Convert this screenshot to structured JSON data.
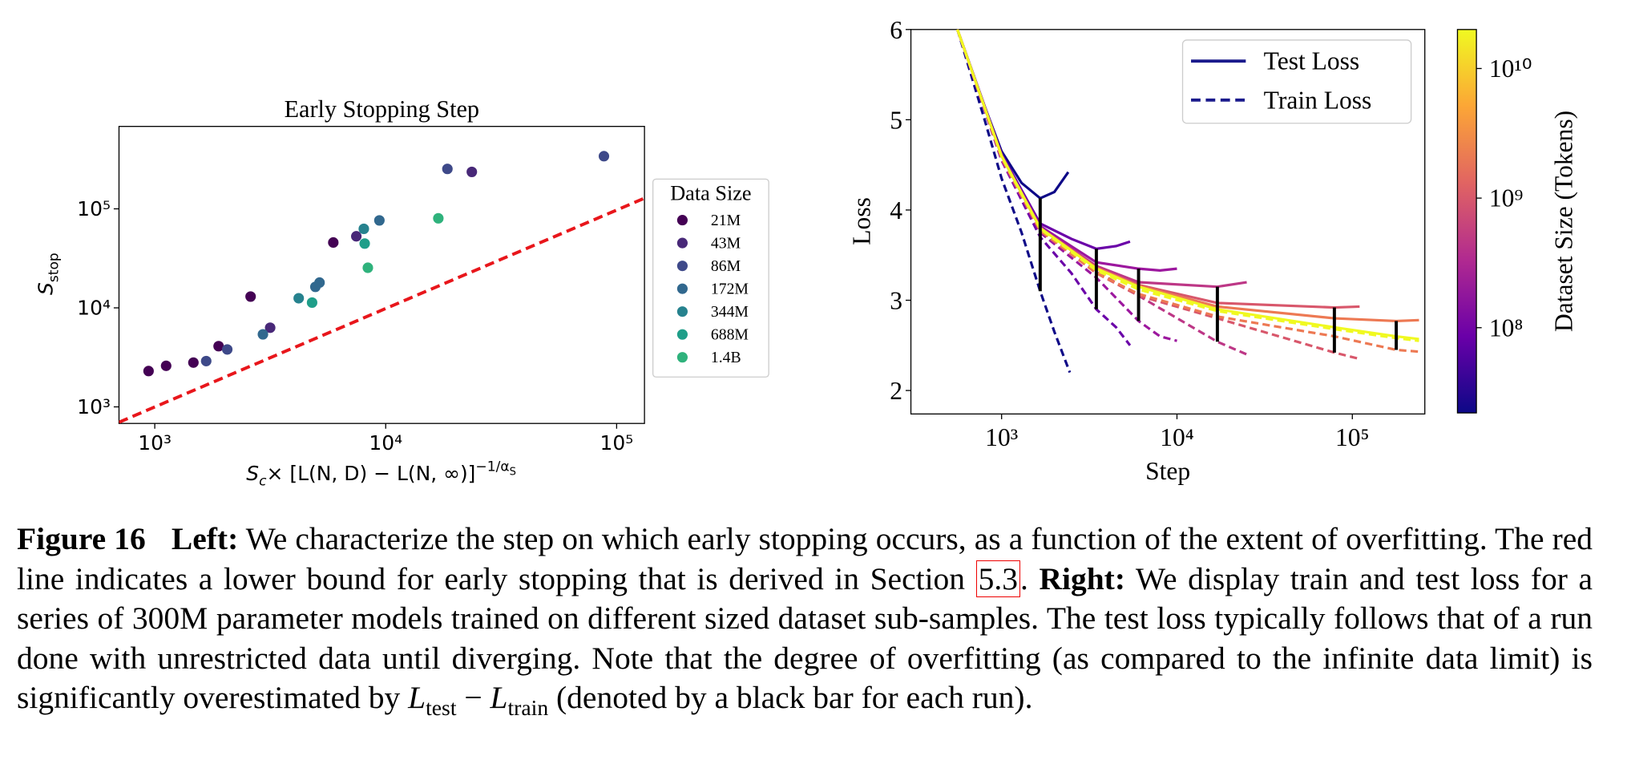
{
  "chart_data": [
    {
      "type": "scatter",
      "title": "Early Stopping Step",
      "xlabel": [
        "S",
        "c",
        "× [L(N, D) − L(N, ∞)]",
        "−1/α",
        "S"
      ],
      "ylabel": [
        "S",
        "stop"
      ],
      "xscale": "log",
      "yscale": "log",
      "xlim": [
        700,
        132000
      ],
      "ylim": [
        680,
        680000
      ],
      "xticks": [
        {
          "value": 1000,
          "label": "10³"
        },
        {
          "value": 10000,
          "label": "10⁴"
        },
        {
          "value": 100000,
          "label": "10⁵"
        }
      ],
      "yticks": [
        {
          "value": 1000,
          "label": "10³"
        },
        {
          "value": 10000,
          "label": "10⁴"
        },
        {
          "value": 100000,
          "label": "10⁵"
        }
      ],
      "legend_title": "Data Size",
      "legend": "outside right",
      "series": [
        {
          "name": "21M",
          "color": "#440154",
          "x": [
            940,
            1120,
            1470,
            1890,
            2600,
            5930
          ],
          "values": [
            2300,
            2600,
            2800,
            4100,
            13000,
            45700
          ]
        },
        {
          "name": "43M",
          "color": "#482878",
          "x": [
            3160,
            7460,
            23600
          ],
          "values": [
            6300,
            52800,
            236000
          ]
        },
        {
          "name": "86M",
          "color": "#3e4989",
          "x": [
            1670,
            2060,
            18500,
            88100
          ],
          "values": [
            2900,
            3800,
            253000,
            340000
          ]
        },
        {
          "name": "172M",
          "color": "#31688e",
          "x": [
            2940,
            4960,
            5170,
            9390
          ],
          "values": [
            5400,
            16300,
            18000,
            76400
          ]
        },
        {
          "name": "344M",
          "color": "#26828e",
          "x": [
            4200,
            8040
          ],
          "values": [
            12500,
            62800
          ]
        },
        {
          "name": "688M",
          "color": "#1f9e89",
          "x": [
            4800,
            8110
          ],
          "values": [
            11300,
            44600
          ]
        },
        {
          "name": "1.4B",
          "color": "#2fb27c",
          "x": [
            8370,
            16900
          ],
          "values": [
            25400,
            80200
          ]
        }
      ],
      "lines": [
        {
          "color": "#e8161b",
          "dash": true,
          "x": [
            700,
            132000
          ],
          "values": [
            700,
            128000
          ]
        }
      ]
    },
    {
      "type": "line",
      "xlabel": "Step",
      "ylabel": "Loss",
      "xscale": "log",
      "xlim": [
        304,
        259000
      ],
      "ylim": [
        1.74,
        6
      ],
      "xticks": [
        {
          "value": 1000,
          "label": "10³"
        },
        {
          "value": 10000,
          "label": "10⁴"
        },
        {
          "value": 100000,
          "label": "10⁵"
        }
      ],
      "yticks": [
        2,
        3,
        4,
        5,
        6
      ],
      "legend": "upper right",
      "legend_entries": [
        {
          "label": "Test Loss",
          "color": "#1a1a8c",
          "dash": false
        },
        {
          "label": "Train Loss",
          "color": "#1a1a8c",
          "dash": true
        }
      ],
      "series": [
        {
          "color": "#0d0887",
          "dash": false,
          "x": [
            560,
            800,
            1000,
            1300,
            1660,
            2000,
            2400
          ],
          "values": [
            6,
            5.15,
            4.65,
            4.3,
            4.13,
            4.2,
            4.42
          ]
        },
        {
          "color": "#0d0887",
          "dash": true,
          "x": [
            560,
            800,
            1000,
            1300,
            1660,
            2000,
            2450
          ],
          "values": [
            6,
            5.0,
            4.35,
            3.75,
            3.1,
            2.65,
            2.2
          ]
        },
        {
          "color": "#6a00a8",
          "dash": false,
          "x": [
            560,
            1000,
            1660,
            2500,
            3470,
            4500,
            5400
          ],
          "values": [
            6,
            4.62,
            3.85,
            3.68,
            3.57,
            3.6,
            3.65
          ]
        },
        {
          "color": "#6a00a8",
          "dash": true,
          "x": [
            560,
            1000,
            1660,
            2500,
            3470,
            4500,
            5400
          ],
          "values": [
            6,
            4.55,
            3.7,
            3.3,
            2.9,
            2.7,
            2.5
          ]
        },
        {
          "color": "#9c179e",
          "dash": false,
          "x": [
            560,
            1000,
            1660,
            3470,
            6040,
            8000,
            10000
          ],
          "values": [
            6,
            4.6,
            3.82,
            3.42,
            3.35,
            3.33,
            3.35
          ]
        },
        {
          "color": "#9c179e",
          "dash": true,
          "x": [
            560,
            1000,
            1660,
            3470,
            6040,
            8000,
            10000
          ],
          "values": [
            6,
            4.55,
            3.75,
            3.25,
            2.77,
            2.6,
            2.55
          ]
        },
        {
          "color": "#bd3786",
          "dash": false,
          "x": [
            560,
            1000,
            1660,
            3470,
            6040,
            17000,
            25000
          ],
          "values": [
            6,
            4.6,
            3.8,
            3.38,
            3.2,
            3.15,
            3.2
          ]
        },
        {
          "color": "#bd3786",
          "dash": true,
          "x": [
            560,
            1000,
            1660,
            3470,
            6040,
            17000,
            25000
          ],
          "values": [
            6,
            4.56,
            3.77,
            3.32,
            3.05,
            2.54,
            2.4
          ]
        },
        {
          "color": "#d8576b",
          "dash": false,
          "x": [
            560,
            1000,
            1660,
            3470,
            6040,
            17000,
            79000,
            110000
          ],
          "values": [
            6,
            4.6,
            3.8,
            3.36,
            3.17,
            2.97,
            2.92,
            2.93
          ]
        },
        {
          "color": "#d8576b",
          "dash": true,
          "x": [
            560,
            1000,
            1660,
            3470,
            6040,
            17000,
            79000,
            110000
          ],
          "values": [
            6,
            4.58,
            3.78,
            3.3,
            3.05,
            2.8,
            2.42,
            2.35
          ]
        },
        {
          "color": "#ed7953",
          "dash": false,
          "x": [
            560,
            1000,
            1660,
            3470,
            6040,
            17000,
            79000,
            178000,
            240000
          ],
          "values": [
            6,
            4.6,
            3.8,
            3.36,
            3.16,
            2.93,
            2.8,
            2.77,
            2.78
          ]
        },
        {
          "color": "#ed7953",
          "dash": true,
          "x": [
            560,
            1000,
            1660,
            3470,
            6040,
            17000,
            79000,
            178000,
            240000
          ],
          "values": [
            6,
            4.58,
            3.77,
            3.3,
            3.07,
            2.82,
            2.6,
            2.45,
            2.43
          ]
        },
        {
          "color": "#f0f921",
          "dash": false,
          "x": [
            560,
            1000,
            1660,
            3470,
            6040,
            17000,
            79000,
            178000,
            240000
          ],
          "values": [
            6,
            4.6,
            3.8,
            3.35,
            3.15,
            2.9,
            2.7,
            2.6,
            2.57
          ]
        },
        {
          "color": "#f0f921",
          "dash": true,
          "x": [
            560,
            1000,
            1660,
            3470,
            6040,
            17000,
            79000,
            178000,
            240000
          ],
          "values": [
            6,
            4.59,
            3.79,
            3.33,
            3.12,
            2.88,
            2.68,
            2.58,
            2.55
          ]
        }
      ],
      "bars": {
        "color": "#000000",
        "x": [
          1660,
          3470,
          6040,
          17000,
          79000,
          178000
        ],
        "top": [
          4.13,
          3.57,
          3.35,
          3.15,
          2.92,
          2.77
        ],
        "bottom": [
          3.1,
          2.9,
          2.77,
          2.54,
          2.42,
          2.45
        ]
      },
      "colorbar": {
        "label": "Dataset Size (Tokens)",
        "lim": [
          22000000,
          20000000000
        ],
        "ticks": [
          {
            "value": 100000000,
            "label": "10⁸"
          },
          {
            "value": 1000000000,
            "label": "10⁹"
          },
          {
            "value": 10000000000,
            "label": "10¹⁰"
          }
        ],
        "colors": [
          "#0d0887",
          "#6a00a8",
          "#b12a90",
          "#e16462",
          "#fca636",
          "#f0f921"
        ]
      }
    }
  ],
  "caption": {
    "figure": "Figure 16",
    "left_label": "Left:",
    "left_text": "We characterize the step on which early stopping occurs, as a function of the extent of overfitting. The red line indicates a lower bound for early stopping that is derived in Section",
    "ref": "5.3",
    "ref_end": ".",
    "right_label": "Right:",
    "right_text": "We display train and test loss for a series of 300M parameter models trained on different sized dataset sub-samples. The test loss typically follows that of a run done with unrestricted data until diverging. Note that the degree of overfitting (as compared to the infinite data limit) is significantly overestimated by",
    "math": [
      "L",
      "test",
      "−",
      "L",
      "train"
    ],
    "end_text": "(denoted by a black bar for each run)."
  }
}
